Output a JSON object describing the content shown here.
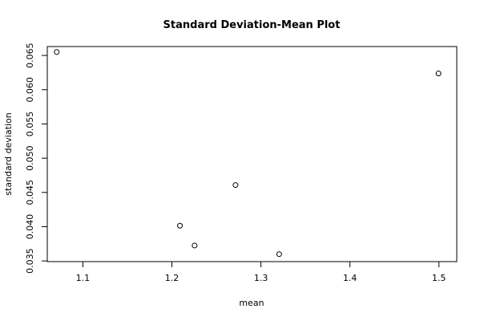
{
  "chart_data": {
    "type": "scatter",
    "title": "Standard Deviation-Mean Plot",
    "xlabel": "mean",
    "ylabel": "standard deviation",
    "xlim": [
      1.06,
      1.52
    ],
    "ylim": [
      0.0349,
      0.0663
    ],
    "x_ticks": [
      1.1,
      1.2,
      1.3,
      1.4,
      1.5
    ],
    "x_tick_labels": [
      "1.1",
      "1.2",
      "1.3",
      "1.4",
      "1.5"
    ],
    "y_ticks": [
      0.035,
      0.04,
      0.045,
      0.05,
      0.055,
      0.06,
      0.065
    ],
    "y_tick_labels": [
      "0.035",
      "0.040",
      "0.045",
      "0.050",
      "0.055",
      "0.060",
      "0.065"
    ],
    "points": [
      {
        "x": 1.0706,
        "y": 0.0655
      },
      {
        "x": 1.209,
        "y": 0.04014
      },
      {
        "x": 1.2255,
        "y": 0.03725
      },
      {
        "x": 1.2715,
        "y": 0.04608
      },
      {
        "x": 1.3205,
        "y": 0.03599
      },
      {
        "x": 1.4995,
        "y": 0.06237
      }
    ],
    "grid": false,
    "legend": "none",
    "marker": "open-circle",
    "colors": {
      "points": "#000000",
      "axes": "#000000",
      "background": "#ffffff"
    }
  }
}
